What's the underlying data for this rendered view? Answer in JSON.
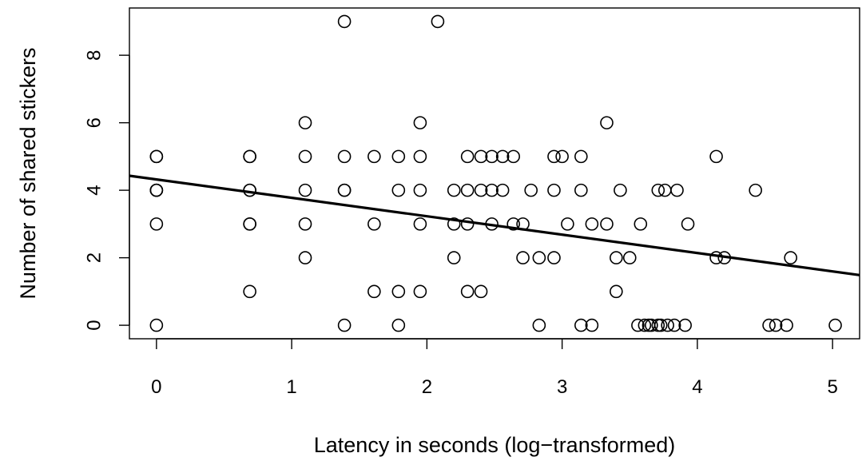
{
  "chart_data": {
    "type": "scatter",
    "title": "",
    "xlabel": "Latency in seconds (log−transformed)",
    "ylabel": "Number of shared stickers",
    "xlim": [
      -0.2,
      5.2
    ],
    "ylim": [
      -0.4,
      9.4
    ],
    "xticks": [
      0,
      1,
      2,
      3,
      4,
      5
    ],
    "yticks": [
      0,
      2,
      4,
      6,
      8
    ],
    "grid": false,
    "legend": "none",
    "points": [
      {
        "x": 0,
        "y": 5
      },
      {
        "x": 0,
        "y": 5
      },
      {
        "x": 0,
        "y": 4
      },
      {
        "x": 0,
        "y": 4
      },
      {
        "x": 0,
        "y": 4
      },
      {
        "x": 0,
        "y": 3
      },
      {
        "x": 0,
        "y": 0
      },
      {
        "x": 0.69,
        "y": 5
      },
      {
        "x": 0.69,
        "y": 5
      },
      {
        "x": 0.69,
        "y": 4
      },
      {
        "x": 0.69,
        "y": 4
      },
      {
        "x": 0.69,
        "y": 3
      },
      {
        "x": 0.69,
        "y": 3
      },
      {
        "x": 0.69,
        "y": 1
      },
      {
        "x": 1.1,
        "y": 6
      },
      {
        "x": 1.1,
        "y": 5
      },
      {
        "x": 1.1,
        "y": 4
      },
      {
        "x": 1.1,
        "y": 3
      },
      {
        "x": 1.1,
        "y": 2
      },
      {
        "x": 1.39,
        "y": 9
      },
      {
        "x": 1.39,
        "y": 5
      },
      {
        "x": 1.39,
        "y": 4
      },
      {
        "x": 1.39,
        "y": 4
      },
      {
        "x": 1.39,
        "y": 0
      },
      {
        "x": 1.61,
        "y": 5
      },
      {
        "x": 1.61,
        "y": 3
      },
      {
        "x": 1.61,
        "y": 1
      },
      {
        "x": 1.79,
        "y": 5
      },
      {
        "x": 1.79,
        "y": 4
      },
      {
        "x": 1.79,
        "y": 1
      },
      {
        "x": 1.79,
        "y": 0
      },
      {
        "x": 1.95,
        "y": 6
      },
      {
        "x": 1.95,
        "y": 5
      },
      {
        "x": 1.95,
        "y": 4
      },
      {
        "x": 1.95,
        "y": 3
      },
      {
        "x": 1.95,
        "y": 1
      },
      {
        "x": 2.08,
        "y": 9
      },
      {
        "x": 2.2,
        "y": 4
      },
      {
        "x": 2.2,
        "y": 3
      },
      {
        "x": 2.2,
        "y": 2
      },
      {
        "x": 2.3,
        "y": 5
      },
      {
        "x": 2.3,
        "y": 4
      },
      {
        "x": 2.3,
        "y": 3
      },
      {
        "x": 2.3,
        "y": 1
      },
      {
        "x": 2.4,
        "y": 5
      },
      {
        "x": 2.4,
        "y": 4
      },
      {
        "x": 2.4,
        "y": 1
      },
      {
        "x": 2.48,
        "y": 5
      },
      {
        "x": 2.48,
        "y": 4
      },
      {
        "x": 2.48,
        "y": 3
      },
      {
        "x": 2.56,
        "y": 5
      },
      {
        "x": 2.56,
        "y": 4
      },
      {
        "x": 2.64,
        "y": 5
      },
      {
        "x": 2.64,
        "y": 3
      },
      {
        "x": 2.71,
        "y": 3
      },
      {
        "x": 2.71,
        "y": 2
      },
      {
        "x": 2.77,
        "y": 4
      },
      {
        "x": 2.83,
        "y": 2
      },
      {
        "x": 2.83,
        "y": 0
      },
      {
        "x": 2.94,
        "y": 5
      },
      {
        "x": 2.94,
        "y": 4
      },
      {
        "x": 2.94,
        "y": 2
      },
      {
        "x": 3.0,
        "y": 5
      },
      {
        "x": 3.04,
        "y": 3
      },
      {
        "x": 3.14,
        "y": 5
      },
      {
        "x": 3.14,
        "y": 4
      },
      {
        "x": 3.14,
        "y": 0
      },
      {
        "x": 3.22,
        "y": 3
      },
      {
        "x": 3.22,
        "y": 0
      },
      {
        "x": 3.33,
        "y": 6
      },
      {
        "x": 3.33,
        "y": 3
      },
      {
        "x": 3.4,
        "y": 2
      },
      {
        "x": 3.4,
        "y": 1
      },
      {
        "x": 3.43,
        "y": 4
      },
      {
        "x": 3.5,
        "y": 2
      },
      {
        "x": 3.56,
        "y": 0
      },
      {
        "x": 3.58,
        "y": 3
      },
      {
        "x": 3.61,
        "y": 0
      },
      {
        "x": 3.64,
        "y": 0
      },
      {
        "x": 3.66,
        "y": 0
      },
      {
        "x": 3.71,
        "y": 4
      },
      {
        "x": 3.71,
        "y": 0
      },
      {
        "x": 3.73,
        "y": 0
      },
      {
        "x": 3.76,
        "y": 4
      },
      {
        "x": 3.78,
        "y": 0
      },
      {
        "x": 3.83,
        "y": 0
      },
      {
        "x": 3.85,
        "y": 4
      },
      {
        "x": 3.91,
        "y": 0
      },
      {
        "x": 3.93,
        "y": 3
      },
      {
        "x": 4.14,
        "y": 5
      },
      {
        "x": 4.14,
        "y": 2
      },
      {
        "x": 4.2,
        "y": 2
      },
      {
        "x": 4.43,
        "y": 4
      },
      {
        "x": 4.53,
        "y": 0
      },
      {
        "x": 4.58,
        "y": 0
      },
      {
        "x": 4.66,
        "y": 0
      },
      {
        "x": 4.69,
        "y": 2
      },
      {
        "x": 5.02,
        "y": 0
      }
    ],
    "regression_line": {
      "intercept": 4.32,
      "slope": -0.545
    }
  }
}
